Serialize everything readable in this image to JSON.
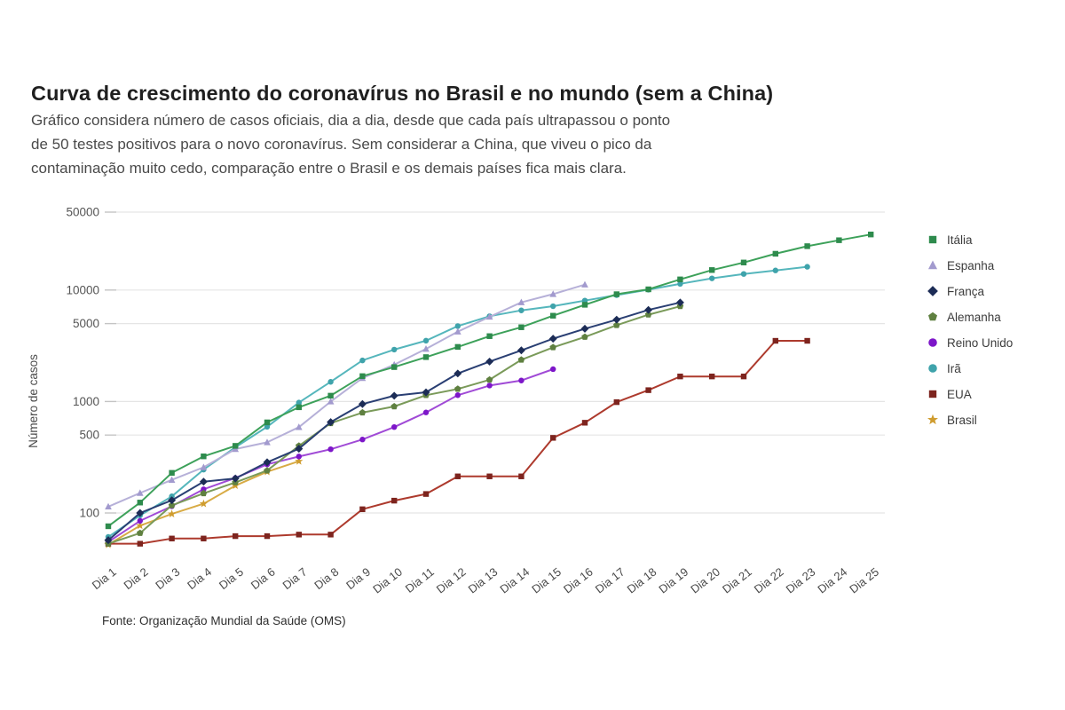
{
  "page": {
    "title": "Curva de crescimento do coronavírus no Brasil e no mundo (sem a China)",
    "subtitle_lines": [
      "Gráfico considera número de casos oficiais, dia a dia, desde que cada país ultrapassou o ponto",
      "de 50 testes positivos para o novo coronavírus. Sem considerar a China, que viveu o pico da",
      "contaminação muito cedo, comparação entre o Brasil e os demais países fica mais clara."
    ],
    "source": "Fonte: Organização Mundial da Saúde (OMS)"
  },
  "chart_data": {
    "type": "line",
    "title": "Curva de crescimento do coronavírus no Brasil e no mundo (sem a China)",
    "xlabel": "",
    "ylabel": "Número de casos",
    "y_scale": "log",
    "y_ticks": [
      100,
      500,
      1000,
      5000,
      10000,
      50000
    ],
    "ylim": [
      45,
      60000
    ],
    "grid": "horizontal",
    "legend_position": "right",
    "x_categories": [
      "Dia 1",
      "Dia 2",
      "Dia 3",
      "Dia 4",
      "Dia 5",
      "Dia 6",
      "Dia 7",
      "Dia 8",
      "Dia 9",
      "Dia 10",
      "Dia 11",
      "Dia 12",
      "Dia 13",
      "Dia 14",
      "Dia 15",
      "Dia 16",
      "Dia 17",
      "Dia 18",
      "Dia 19",
      "Dia 20",
      "Dia 21",
      "Dia 22",
      "Dia 23",
      "Dia 24",
      "Dia 25"
    ],
    "series": [
      {
        "name": "Itália",
        "color": "#3da15a",
        "marker_color": "#2e8b4d",
        "marker": "square",
        "values": [
          76,
          124,
          229,
          322,
          400,
          650,
          888,
          1128,
          1689,
          2036,
          2502,
          3089,
          3858,
          4636,
          5883,
          7375,
          9172,
          10149,
          12462,
          15113,
          17660,
          21157,
          24747,
          27980,
          31506
        ]
      },
      {
        "name": "Espanha",
        "color": "#b6b0d8",
        "marker_color": "#a29ace",
        "marker": "triangle",
        "values": [
          114,
          151,
          198,
          257,
          374,
          430,
          589,
          999,
          1622,
          2140,
          2965,
          4231,
          5753,
          7753,
          9191,
          11178
        ]
      },
      {
        "name": "França",
        "color": "#2a3f73",
        "marker_color": "#1c2c56",
        "marker": "diamond",
        "values": [
          57,
          100,
          130,
          191,
          204,
          285,
          377,
          653,
          949,
          1126,
          1209,
          1784,
          2281,
          2876,
          3661,
          4499,
          5423,
          6633,
          7730
        ]
      },
      {
        "name": "Alemanha",
        "color": "#7a9a59",
        "marker_color": "#5f8040",
        "marker": "pentagon",
        "values": [
          53,
          66,
          117,
          150,
          188,
          240,
          400,
          639,
          795,
          902,
          1139,
          1296,
          1567,
          2369,
          3062,
          3795,
          4838,
          6012,
          7156
        ]
      },
      {
        "name": "Reino Unido",
        "color": "#a04ad6",
        "marker_color": "#7d16c9",
        "marker": "circle",
        "values": [
          55,
          85,
          115,
          163,
          206,
          273,
          321,
          373,
          456,
          590,
          798,
          1140,
          1391,
          1543,
          1950
        ]
      },
      {
        "name": "Irã",
        "color": "#55b6bc",
        "marker_color": "#3fa3ab",
        "marker": "circle",
        "values": [
          61,
          95,
          141,
          245,
          388,
          593,
          978,
          1501,
          2336,
          2922,
          3513,
          4747,
          5823,
          6566,
          7161,
          8042,
          9000,
          10075,
          11364,
          12729,
          13938,
          14991,
          16169
        ]
      },
      {
        "name": "EUA",
        "color": "#ad3a2d",
        "marker_color": "#7d241e",
        "marker": "square",
        "values": [
          53,
          53,
          59,
          59,
          62,
          62,
          64,
          64,
          108,
          129,
          148,
          213,
          213,
          213,
          472,
          645,
          987,
          1264,
          1678,
          1678,
          1678,
          3503,
          3503
        ]
      },
      {
        "name": "Brasil",
        "color": "#d8ab45",
        "marker_color": "#cf9c2e",
        "marker": "star",
        "values": [
          52,
          77,
          98,
          121,
          176,
          234,
          291
        ]
      }
    ]
  }
}
